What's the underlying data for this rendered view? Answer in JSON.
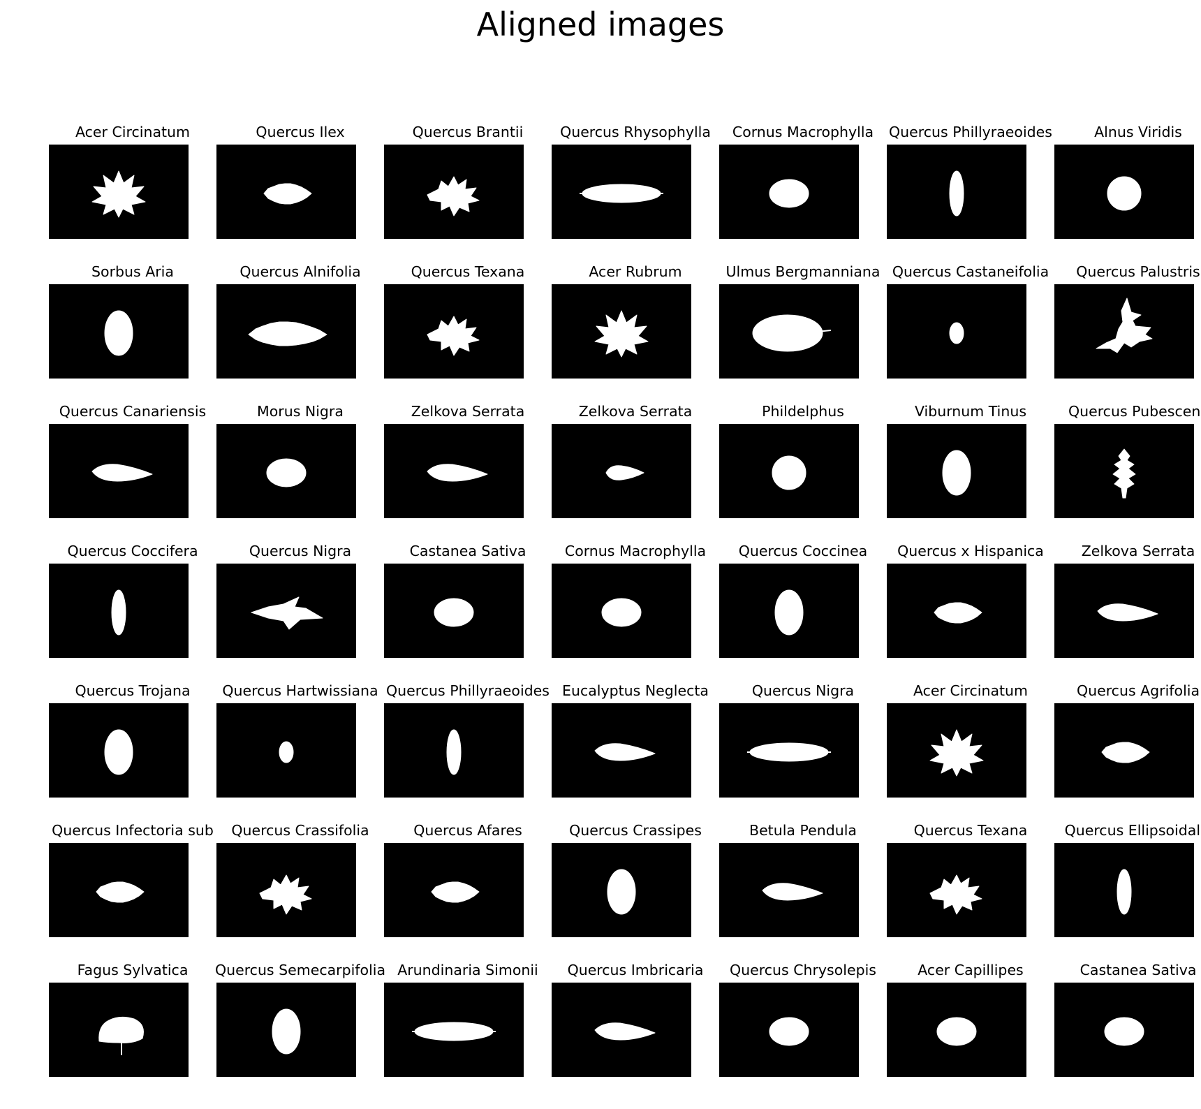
{
  "title": "Aligned images",
  "colors": {
    "background": "#ffffff",
    "image_background": "#000000",
    "leaf": "#ffffff",
    "text": "#000000"
  },
  "grid": {
    "rows": 7,
    "cols": 7
  },
  "cells": [
    {
      "label": "Acer Circinatum",
      "shape": "maple-leaf-icon"
    },
    {
      "label": "Quercus Ilex",
      "shape": "serrate-oval-leaf-icon"
    },
    {
      "label": "Quercus Brantii",
      "shape": "oak-lobed-leaf-icon"
    },
    {
      "label": "Quercus Rhysophylla",
      "shape": "long-narrow-leaf-icon"
    },
    {
      "label": "Cornus Macrophylla",
      "shape": "oval-leaf-icon"
    },
    {
      "label": "Quercus Phillyraeoides",
      "shape": "vertical-narrow-leaf-icon"
    },
    {
      "label": "Alnus Viridis",
      "shape": "round-leaf-icon"
    },
    {
      "label": "Sorbus Aria",
      "shape": "vertical-oval-leaf-icon"
    },
    {
      "label": "Quercus Alnifolia",
      "shape": "wide-serrate-leaf-icon"
    },
    {
      "label": "Quercus Texana",
      "shape": "oak-lobed-leaf-icon"
    },
    {
      "label": "Acer Rubrum",
      "shape": "maple-leaf-icon"
    },
    {
      "label": "Ulmus Bergmanniana",
      "shape": "large-oval-leaf-icon"
    },
    {
      "label": "Quercus Castaneifolia",
      "shape": "small-oval-leaf-icon"
    },
    {
      "label": "Quercus Palustris",
      "shape": "deep-lobed-leaf-icon"
    },
    {
      "label": "Quercus Canariensis",
      "shape": "pointed-oval-leaf-icon"
    },
    {
      "label": "Morus Nigra",
      "shape": "oval-leaf-icon"
    },
    {
      "label": "Zelkova Serrata",
      "shape": "pointed-oval-leaf-icon"
    },
    {
      "label": "Zelkova Serrata",
      "shape": "small-pointed-leaf-icon"
    },
    {
      "label": "Phildelphus",
      "shape": "round-leaf-icon"
    },
    {
      "label": "Viburnum Tinus",
      "shape": "vertical-oval-leaf-icon"
    },
    {
      "label": "Quercus Pubescens",
      "shape": "vertical-lobed-leaf-icon"
    },
    {
      "label": "Quercus Coccifera",
      "shape": "vertical-narrow-leaf-icon"
    },
    {
      "label": "Quercus Nigra",
      "shape": "arrow-leaf-icon"
    },
    {
      "label": "Castanea Sativa",
      "shape": "oval-leaf-icon"
    },
    {
      "label": "Cornus Macrophylla",
      "shape": "oval-leaf-icon"
    },
    {
      "label": "Quercus Coccinea",
      "shape": "vertical-oval-leaf-icon"
    },
    {
      "label": "Quercus x Hispanica",
      "shape": "serrate-oval-leaf-icon"
    },
    {
      "label": "Zelkova Serrata",
      "shape": "pointed-oval-leaf-icon"
    },
    {
      "label": "Quercus Trojana",
      "shape": "vertical-oval-leaf-icon"
    },
    {
      "label": "Quercus Hartwissiana",
      "shape": "small-oval-leaf-icon"
    },
    {
      "label": "Quercus Phillyraeoides",
      "shape": "vertical-narrow-leaf-icon"
    },
    {
      "label": "Eucalyptus Neglecta",
      "shape": "pointed-oval-leaf-icon"
    },
    {
      "label": "Quercus Nigra",
      "shape": "long-narrow-leaf-icon"
    },
    {
      "label": "Acer Circinatum",
      "shape": "maple-leaf-icon"
    },
    {
      "label": "Quercus Agrifolia",
      "shape": "serrate-oval-leaf-icon"
    },
    {
      "label": "Quercus Infectoria sub",
      "shape": "serrate-oval-leaf-icon"
    },
    {
      "label": "Quercus Crassifolia",
      "shape": "oak-lobed-leaf-icon"
    },
    {
      "label": "Quercus Afares",
      "shape": "serrate-oval-leaf-icon"
    },
    {
      "label": "Quercus Crassipes",
      "shape": "vertical-oval-leaf-icon"
    },
    {
      "label": "Betula Pendula",
      "shape": "pointed-oval-leaf-icon"
    },
    {
      "label": "Quercus Texana",
      "shape": "oak-lobed-leaf-icon"
    },
    {
      "label": "Quercus Ellipsoidalis",
      "shape": "vertical-narrow-leaf-icon"
    },
    {
      "label": "Fagus Sylvatica",
      "shape": "fan-leaf-icon"
    },
    {
      "label": "Quercus Semecarpifolia",
      "shape": "vertical-oval-leaf-icon"
    },
    {
      "label": "Arundinaria Simonii",
      "shape": "long-narrow-leaf-icon"
    },
    {
      "label": "Quercus Imbricaria",
      "shape": "pointed-oval-leaf-icon"
    },
    {
      "label": "Quercus Chrysolepis",
      "shape": "oval-leaf-icon"
    },
    {
      "label": "Acer Capillipes",
      "shape": "oval-leaf-icon"
    },
    {
      "label": "Castanea Sativa",
      "shape": "oval-leaf-icon"
    }
  ]
}
